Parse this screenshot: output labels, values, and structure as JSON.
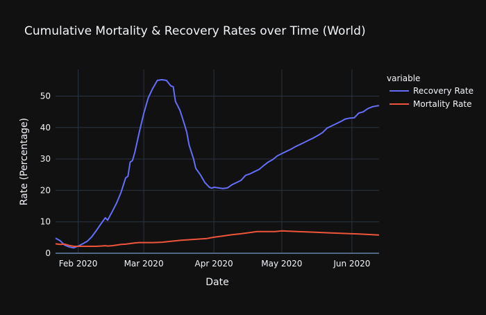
{
  "chart_data": {
    "type": "line",
    "title": "Cumulative Mortality & Recovery Rates over Time (World)",
    "xlabel": "Date",
    "ylabel": "Rate (Percentage)",
    "x_range": [
      "2020-01-22",
      "2020-06-13"
    ],
    "ylim": [
      0,
      58.5
    ],
    "x_ticks": [
      {
        "date": "2020-02-01",
        "label": "Feb 2020"
      },
      {
        "date": "2020-03-01",
        "label": "Mar 2020"
      },
      {
        "date": "2020-04-01",
        "label": "Apr 2020"
      },
      {
        "date": "2020-05-01",
        "label": "May 2020"
      },
      {
        "date": "2020-06-01",
        "label": "Jun 2020"
      }
    ],
    "y_ticks": [
      0,
      10,
      20,
      30,
      40,
      50
    ],
    "grid": true,
    "legend": {
      "title": "variable",
      "position": "top-right"
    },
    "series": [
      {
        "name": "Recovery Rate",
        "color": "#636efa",
        "points": [
          [
            "2020-01-22",
            4.8
          ],
          [
            "2020-01-24",
            4.0
          ],
          [
            "2020-01-26",
            2.6
          ],
          [
            "2020-01-28",
            2.0
          ],
          [
            "2020-01-30",
            1.7
          ],
          [
            "2020-02-01",
            2.3
          ],
          [
            "2020-02-03",
            3.0
          ],
          [
            "2020-02-05",
            3.8
          ],
          [
            "2020-02-07",
            5.2
          ],
          [
            "2020-02-09",
            7.2
          ],
          [
            "2020-02-11",
            9.3
          ],
          [
            "2020-02-13",
            11.3
          ],
          [
            "2020-02-14",
            10.5
          ],
          [
            "2020-02-16",
            13.2
          ],
          [
            "2020-02-18",
            16.0
          ],
          [
            "2020-02-20",
            19.5
          ],
          [
            "2020-02-22",
            24.0
          ],
          [
            "2020-02-23",
            24.5
          ],
          [
            "2020-02-24",
            29.0
          ],
          [
            "2020-02-25",
            29.5
          ],
          [
            "2020-02-26",
            32.0
          ],
          [
            "2020-02-28",
            38.5
          ],
          [
            "2020-03-01",
            44.5
          ],
          [
            "2020-03-03",
            49.5
          ],
          [
            "2020-03-05",
            52.5
          ],
          [
            "2020-03-07",
            55.0
          ],
          [
            "2020-03-09",
            55.2
          ],
          [
            "2020-03-11",
            55.0
          ],
          [
            "2020-03-13",
            53.2
          ],
          [
            "2020-03-14",
            53.0
          ],
          [
            "2020-03-15",
            48.3
          ],
          [
            "2020-03-17",
            45.5
          ],
          [
            "2020-03-19",
            41.0
          ],
          [
            "2020-03-20",
            38.5
          ],
          [
            "2020-03-21",
            34.5
          ],
          [
            "2020-03-23",
            30.0
          ],
          [
            "2020-03-24",
            27.0
          ],
          [
            "2020-03-26",
            25.0
          ],
          [
            "2020-03-28",
            22.5
          ],
          [
            "2020-03-30",
            21.0
          ],
          [
            "2020-03-31",
            20.7
          ],
          [
            "2020-04-01",
            21.0
          ],
          [
            "2020-04-03",
            20.8
          ],
          [
            "2020-04-05",
            20.6
          ],
          [
            "2020-04-07",
            20.8
          ],
          [
            "2020-04-09",
            21.8
          ],
          [
            "2020-04-11",
            22.5
          ],
          [
            "2020-04-13",
            23.2
          ],
          [
            "2020-04-15",
            24.8
          ],
          [
            "2020-04-17",
            25.3
          ],
          [
            "2020-04-19",
            26.0
          ],
          [
            "2020-04-21",
            26.7
          ],
          [
            "2020-04-23",
            27.9
          ],
          [
            "2020-04-25",
            29.0
          ],
          [
            "2020-04-27",
            29.8
          ],
          [
            "2020-04-29",
            31.0
          ],
          [
            "2020-05-01",
            31.7
          ],
          [
            "2020-05-03",
            32.4
          ],
          [
            "2020-05-05",
            33.1
          ],
          [
            "2020-05-07",
            33.9
          ],
          [
            "2020-05-09",
            34.6
          ],
          [
            "2020-05-11",
            35.3
          ],
          [
            "2020-05-13",
            36.0
          ],
          [
            "2020-05-15",
            36.7
          ],
          [
            "2020-05-17",
            37.5
          ],
          [
            "2020-05-19",
            38.4
          ],
          [
            "2020-05-21",
            39.8
          ],
          [
            "2020-05-23",
            40.5
          ],
          [
            "2020-05-25",
            41.2
          ],
          [
            "2020-05-27",
            41.9
          ],
          [
            "2020-05-29",
            42.7
          ],
          [
            "2020-05-31",
            43.0
          ],
          [
            "2020-06-02",
            43.1
          ],
          [
            "2020-06-04",
            44.6
          ],
          [
            "2020-06-06",
            45.0
          ],
          [
            "2020-06-08",
            46.0
          ],
          [
            "2020-06-10",
            46.6
          ],
          [
            "2020-06-13",
            47.0
          ]
        ]
      },
      {
        "name": "Mortality Rate",
        "color": "#ef553b",
        "points": [
          [
            "2020-01-22",
            3.0
          ],
          [
            "2020-01-24",
            2.8
          ],
          [
            "2020-01-26",
            2.9
          ],
          [
            "2020-01-28",
            2.5
          ],
          [
            "2020-01-30",
            2.2
          ],
          [
            "2020-02-01",
            2.2
          ],
          [
            "2020-02-03",
            2.2
          ],
          [
            "2020-02-05",
            2.2
          ],
          [
            "2020-02-07",
            2.2
          ],
          [
            "2020-02-09",
            2.2
          ],
          [
            "2020-02-11",
            2.3
          ],
          [
            "2020-02-13",
            2.4
          ],
          [
            "2020-02-14",
            2.3
          ],
          [
            "2020-02-16",
            2.4
          ],
          [
            "2020-02-18",
            2.6
          ],
          [
            "2020-02-20",
            2.8
          ],
          [
            "2020-02-22",
            2.9
          ],
          [
            "2020-02-24",
            3.1
          ],
          [
            "2020-02-26",
            3.3
          ],
          [
            "2020-02-28",
            3.4
          ],
          [
            "2020-03-01",
            3.4
          ],
          [
            "2020-03-05",
            3.4
          ],
          [
            "2020-03-09",
            3.5
          ],
          [
            "2020-03-13",
            3.8
          ],
          [
            "2020-03-17",
            4.1
          ],
          [
            "2020-03-21",
            4.3
          ],
          [
            "2020-03-25",
            4.5
          ],
          [
            "2020-03-29",
            4.7
          ],
          [
            "2020-04-01",
            5.1
          ],
          [
            "2020-04-05",
            5.5
          ],
          [
            "2020-04-09",
            5.9
          ],
          [
            "2020-04-13",
            6.2
          ],
          [
            "2020-04-17",
            6.6
          ],
          [
            "2020-04-20",
            6.9
          ],
          [
            "2020-04-24",
            6.9
          ],
          [
            "2020-04-28",
            6.9
          ],
          [
            "2020-05-01",
            7.1
          ],
          [
            "2020-05-08",
            6.9
          ],
          [
            "2020-05-15",
            6.7
          ],
          [
            "2020-05-22",
            6.5
          ],
          [
            "2020-05-29",
            6.3
          ],
          [
            "2020-06-05",
            6.1
          ],
          [
            "2020-06-13",
            5.8
          ]
        ]
      }
    ]
  }
}
